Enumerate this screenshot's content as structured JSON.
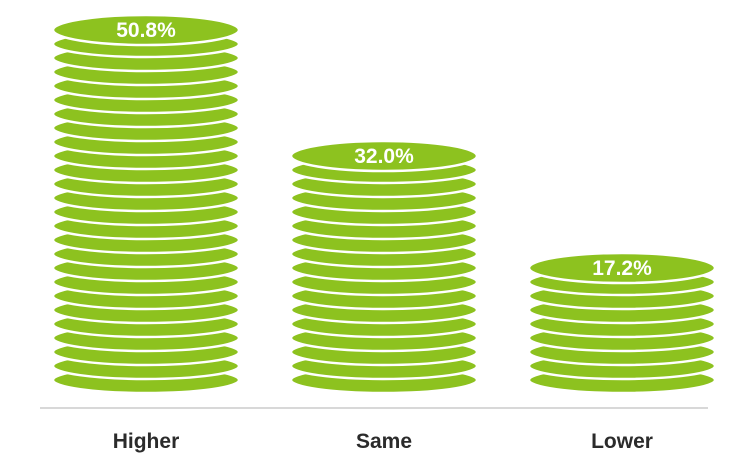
{
  "chart_data": {
    "type": "bar",
    "categories": [
      "Higher",
      "Same",
      "Lower"
    ],
    "values": [
      50.8,
      32.0,
      17.2
    ],
    "value_labels": [
      "50.8%",
      "32.0%",
      "17.2%"
    ],
    "title": "",
    "xlabel": "",
    "ylabel": "",
    "grid": false,
    "legend": "none",
    "colors": {
      "coin": "#8dc21f",
      "coin_edge": "#ffffff",
      "label_text": "#ffffff",
      "category_text": "#2b2b2b",
      "axis_line": "#cccccc"
    }
  }
}
